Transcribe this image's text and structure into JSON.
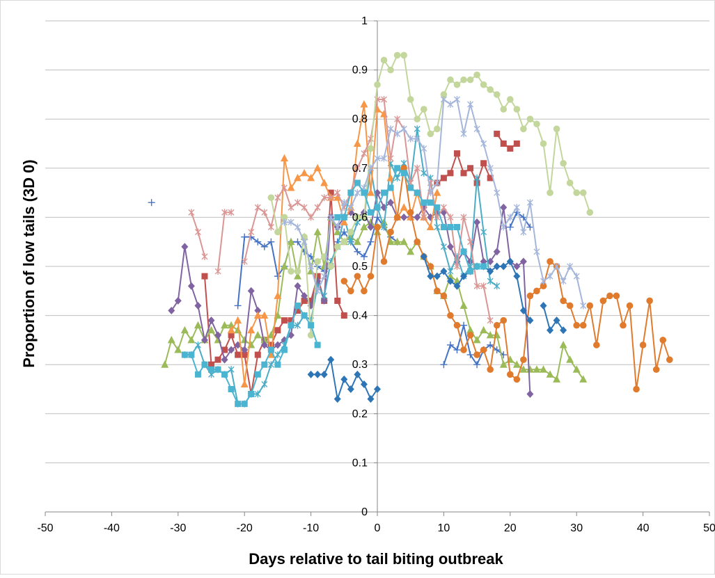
{
  "chart_data": {
    "type": "line",
    "title": "",
    "xlabel": "Days relative to tail biting outbreak",
    "ylabel": "Proportion of low tails (3D 0)",
    "xlim": [
      -50,
      50
    ],
    "ylim": [
      0,
      1
    ],
    "x_ticks": [
      -50,
      -40,
      -30,
      -20,
      -10,
      0,
      10,
      20,
      30,
      40,
      50
    ],
    "y_ticks": [
      0,
      0.1,
      0.2,
      0.3,
      0.4,
      0.5,
      0.6,
      0.7,
      0.8,
      0.9,
      1
    ],
    "x_tick_labels": [
      "-50",
      "-40",
      "-30",
      "-20",
      "-10",
      "0",
      "10",
      "20",
      "30",
      "40",
      "50"
    ],
    "y_tick_labels": [
      "0",
      "0.1",
      "0.2",
      "0.3",
      "0.4",
      "0.5",
      "0.6",
      "0.7",
      "0.8",
      "0.9",
      "1"
    ],
    "grid": "horizontal",
    "legend": "none",
    "series": [
      {
        "color": "#4472c4",
        "marker": "plus",
        "x": [
          -34
        ],
        "y": [
          0.63
        ]
      },
      {
        "color": "#4472c4",
        "marker": "plus",
        "x": [
          -21,
          -20,
          -19,
          -18,
          -17,
          -16,
          -15,
          -14,
          -13,
          -12,
          -11,
          -10,
          -9,
          -8,
          -7,
          -6,
          -5,
          -4,
          -3,
          -2,
          -1,
          0,
          1,
          2,
          3
        ],
        "y": [
          0.42,
          0.56,
          0.56,
          0.55,
          0.54,
          0.55,
          0.48,
          0.5,
          0.55,
          0.55,
          0.53,
          0.52,
          0.5,
          0.49,
          0.5,
          0.55,
          0.57,
          0.55,
          0.53,
          0.52,
          0.55,
          0.6,
          0.58,
          0.56,
          0.55
        ]
      },
      {
        "color": "#4472c4",
        "marker": "plus",
        "x": [
          10,
          11,
          12,
          13,
          14,
          15,
          16,
          17,
          18,
          19
        ],
        "y": [
          0.3,
          0.34,
          0.33,
          0.38,
          0.32,
          0.3,
          0.33,
          0.34,
          0.33,
          0.32
        ]
      },
      {
        "color": "#4472c4",
        "marker": "plus",
        "x": [
          20,
          21,
          22,
          23
        ],
        "y": [
          0.58,
          0.61,
          0.6,
          0.58
        ]
      },
      {
        "color": "#c0504d",
        "marker": "square",
        "x": [
          -26,
          -25,
          -24,
          -23,
          -22,
          -21,
          -20,
          -19,
          -18,
          -17,
          -16,
          -15,
          -14,
          -13,
          -12,
          -11,
          -10,
          -9,
          -8,
          -7,
          -6,
          -5
        ],
        "y": [
          0.48,
          0.3,
          0.31,
          0.33,
          0.36,
          0.32,
          0.32,
          0.24,
          0.32,
          0.35,
          0.34,
          0.37,
          0.39,
          0.39,
          0.41,
          0.43,
          0.43,
          0.48,
          0.43,
          0.65,
          0.43,
          0.4
        ]
      },
      {
        "color": "#c0504d",
        "marker": "square",
        "x": [
          9,
          10,
          11,
          12,
          13,
          14,
          15,
          16,
          17
        ],
        "y": [
          0.67,
          0.68,
          0.69,
          0.73,
          0.69,
          0.7,
          0.67,
          0.71,
          0.68
        ]
      },
      {
        "color": "#c0504d",
        "marker": "square",
        "x": [
          18,
          19,
          20,
          21
        ],
        "y": [
          0.77,
          0.75,
          0.74,
          0.75
        ]
      },
      {
        "color": "#9bbb59",
        "marker": "triangle",
        "x": [
          -32,
          -31,
          -30,
          -29,
          -28,
          -27,
          -26,
          -25,
          -24,
          -23,
          -22,
          -21,
          -20,
          -19,
          -18,
          -17,
          -16,
          -15,
          -14,
          -13,
          -12,
          -11,
          -10,
          -9,
          -8,
          -7,
          -6,
          -5,
          -4,
          -3,
          -2,
          -1,
          0,
          1,
          2,
          3,
          4,
          5,
          6,
          7,
          8,
          9,
          10,
          11,
          12,
          13,
          14,
          15,
          16,
          17,
          18,
          19,
          20,
          21,
          22,
          23,
          24,
          25,
          26,
          27,
          28,
          29,
          30,
          31
        ],
        "y": [
          0.3,
          0.35,
          0.33,
          0.37,
          0.35,
          0.38,
          0.35,
          0.37,
          0.35,
          0.38,
          0.38,
          0.37,
          0.35,
          0.34,
          0.36,
          0.35,
          0.36,
          0.4,
          0.5,
          0.55,
          0.48,
          0.56,
          0.49,
          0.57,
          0.5,
          0.6,
          0.57,
          0.55,
          0.56,
          0.55,
          0.58,
          0.59,
          0.57,
          0.59,
          0.55,
          0.55,
          0.55,
          0.53,
          0.55,
          0.52,
          0.5,
          0.45,
          0.44,
          0.48,
          0.47,
          0.42,
          0.37,
          0.35,
          0.37,
          0.36,
          0.36,
          0.3,
          0.31,
          0.3,
          0.29,
          0.29,
          0.29,
          0.29,
          0.28,
          0.27,
          0.34,
          0.31,
          0.29,
          0.27
        ]
      },
      {
        "color": "#8064a2",
        "marker": "diamond",
        "x": [
          -31,
          -30,
          -29,
          -28,
          -27,
          -26,
          -25,
          -24,
          -23,
          -22,
          -21,
          -20,
          -19,
          -18,
          -17,
          -16,
          -15,
          -14,
          -13,
          -12,
          -11,
          -10,
          -9,
          -8,
          -7,
          -6,
          -5,
          -4,
          -3,
          -2,
          -1,
          0,
          1,
          2,
          3,
          4,
          5,
          6,
          7,
          8,
          9,
          10,
          11,
          12,
          13,
          14,
          15,
          16,
          17,
          18,
          19,
          20,
          21,
          22,
          23
        ],
        "y": [
          0.41,
          0.43,
          0.54,
          0.46,
          0.42,
          0.35,
          0.39,
          0.36,
          0.31,
          0.33,
          0.34,
          0.33,
          0.45,
          0.41,
          0.34,
          0.33,
          0.34,
          0.35,
          0.36,
          0.46,
          0.44,
          0.42,
          0.47,
          0.43,
          0.6,
          0.58,
          0.6,
          0.61,
          0.6,
          0.61,
          0.58,
          0.65,
          0.62,
          0.63,
          0.6,
          0.6,
          0.6,
          0.6,
          0.62,
          0.6,
          0.61,
          0.61,
          0.54,
          0.51,
          0.53,
          0.51,
          0.59,
          0.51,
          0.51,
          0.53,
          0.62,
          0.51,
          0.5,
          0.51,
          0.24
        ]
      },
      {
        "color": "#4bacc6",
        "marker": "star",
        "x": [
          -29,
          -28,
          -27,
          -26,
          -25,
          -24,
          -23,
          -22,
          -21,
          -20,
          -19,
          -18,
          -17,
          -16,
          -15,
          -14,
          -13,
          -12,
          -11,
          -10,
          -9,
          -8,
          -7,
          -6,
          -5,
          -4,
          -3,
          -2,
          -1,
          0,
          1,
          2,
          3,
          4,
          5,
          6,
          7,
          8,
          9,
          10,
          11,
          12,
          13,
          14,
          15,
          16,
          17,
          18
        ],
        "y": [
          0.32,
          0.32,
          0.34,
          0.3,
          0.28,
          0.29,
          0.28,
          0.29,
          0.22,
          0.22,
          0.24,
          0.24,
          0.26,
          0.3,
          0.32,
          0.34,
          0.38,
          0.38,
          0.4,
          0.39,
          0.46,
          0.44,
          0.51,
          0.54,
          0.6,
          0.55,
          0.59,
          0.6,
          0.7,
          0.62,
          0.58,
          0.71,
          0.68,
          0.71,
          0.67,
          0.78,
          0.69,
          0.68,
          0.58,
          0.54,
          0.49,
          0.52,
          0.48,
          0.5,
          0.68,
          0.57,
          0.47,
          0.46
        ]
      },
      {
        "color": "#f79646",
        "marker": "triangle",
        "x": [
          -22,
          -21,
          -20,
          -19,
          -18,
          -17,
          -16,
          -15,
          -14,
          -13,
          -12,
          -11,
          -10,
          -9,
          -8,
          -7,
          -6,
          -5,
          -4,
          -3,
          -2,
          -1,
          0,
          1,
          2,
          3,
          4,
          5,
          6,
          7,
          8,
          9
        ],
        "y": [
          0.37,
          0.39,
          0.26,
          0.37,
          0.4,
          0.4,
          0.32,
          0.44,
          0.72,
          0.66,
          0.68,
          0.69,
          0.68,
          0.7,
          0.67,
          0.64,
          0.64,
          0.59,
          0.62,
          0.75,
          0.83,
          0.65,
          0.82,
          0.81,
          0.68,
          0.6,
          0.62,
          0.6,
          0.65,
          0.6,
          0.58,
          0.65
        ]
      },
      {
        "color": "#e07b2e",
        "marker": "circle",
        "x": [
          -5,
          -4,
          -3,
          -2,
          -1,
          0,
          1,
          2,
          3,
          4,
          5,
          6,
          7,
          8,
          9,
          10,
          11,
          12,
          13,
          14,
          15,
          16,
          17,
          18,
          19,
          20,
          21,
          22,
          23,
          24,
          25,
          26,
          27,
          28,
          29,
          30,
          31,
          32,
          33,
          34,
          35,
          36,
          37,
          38,
          39,
          40,
          41,
          42,
          43,
          44
        ],
        "y": [
          0.47,
          0.45,
          0.48,
          0.45,
          0.48,
          0.58,
          0.51,
          0.57,
          0.6,
          0.7,
          0.61,
          0.55,
          0.52,
          0.5,
          0.45,
          0.44,
          0.4,
          0.38,
          0.33,
          0.36,
          0.32,
          0.33,
          0.29,
          0.38,
          0.39,
          0.28,
          0.27,
          0.31,
          0.44,
          0.45,
          0.46,
          0.51,
          0.5,
          0.43,
          0.42,
          0.38,
          0.38,
          0.42,
          0.34,
          0.43,
          0.44,
          0.44,
          0.38,
          0.42,
          0.25,
          0.34,
          0.43,
          0.29,
          0.35,
          0.31
        ]
      },
      {
        "color": "#2e75b6",
        "marker": "diamond",
        "x": [
          -10,
          -9,
          -8,
          -7,
          -6,
          -5,
          -4,
          -3,
          -2,
          -1,
          0
        ],
        "y": [
          0.28,
          0.28,
          0.28,
          0.31,
          0.23,
          0.27,
          0.25,
          0.28,
          0.26,
          0.23,
          0.25
        ]
      },
      {
        "color": "#2e75b6",
        "marker": "diamond",
        "x": [
          7,
          8,
          9,
          10,
          11,
          12,
          13,
          14,
          15,
          16,
          17,
          18,
          19,
          20,
          21,
          22,
          23
        ],
        "y": [
          0.52,
          0.48,
          0.48,
          0.49,
          0.47,
          0.46,
          0.48,
          0.49,
          0.5,
          0.5,
          0.49,
          0.5,
          0.5,
          0.51,
          0.48,
          0.41,
          0.39
        ]
      },
      {
        "color": "#2e75b6",
        "marker": "diamond",
        "x": [
          25,
          26,
          27,
          28
        ],
        "y": [
          0.42,
          0.37,
          0.39,
          0.37
        ]
      },
      {
        "color": "#d99694",
        "marker": "star",
        "x": [
          -28,
          -27,
          -26
        ],
        "y": [
          0.61,
          0.57,
          0.52
        ]
      },
      {
        "color": "#d99694",
        "marker": "star",
        "x": [
          -24,
          -23,
          -22
        ],
        "y": [
          0.49,
          0.61,
          0.61
        ]
      },
      {
        "color": "#d99694",
        "marker": "star",
        "x": [
          -20,
          -19,
          -18,
          -17,
          -16,
          -15,
          -14,
          -13,
          -12,
          -11,
          -10,
          -9,
          -8,
          -7,
          -6,
          -5,
          -4,
          -3,
          -2,
          -1,
          0,
          1,
          2,
          3,
          4,
          5,
          6,
          7,
          8,
          9,
          10,
          11,
          12,
          13,
          14,
          15,
          16,
          17
        ],
        "y": [
          0.51,
          0.57,
          0.62,
          0.61,
          0.58,
          0.64,
          0.66,
          0.62,
          0.63,
          0.62,
          0.6,
          0.62,
          0.64,
          0.64,
          0.65,
          0.62,
          0.65,
          0.7,
          0.73,
          0.76,
          0.84,
          0.84,
          0.72,
          0.8,
          0.78,
          0.67,
          0.7,
          0.6,
          0.67,
          0.6,
          0.62,
          0.6,
          0.5,
          0.6,
          0.55,
          0.46,
          0.46,
          0.39
        ]
      },
      {
        "color": "#c3d69b",
        "marker": "circle",
        "x": [
          -16,
          -15,
          -14,
          -13,
          -12,
          -11,
          -10,
          -9,
          -8,
          -7,
          -6,
          -5,
          -4,
          -3,
          -2,
          -1,
          0,
          1,
          2,
          3,
          4,
          5,
          6,
          7,
          8,
          9,
          10,
          11,
          12,
          13,
          14,
          15,
          16,
          17,
          18,
          19,
          20,
          21,
          22,
          23,
          24,
          25,
          26,
          27,
          28,
          29,
          30,
          31,
          32
        ],
        "y": [
          0.64,
          0.57,
          0.6,
          0.49,
          0.49,
          0.56,
          0.36,
          0.51,
          0.52,
          0.5,
          0.54,
          0.55,
          0.57,
          0.6,
          0.6,
          0.74,
          0.87,
          0.92,
          0.9,
          0.93,
          0.93,
          0.84,
          0.8,
          0.82,
          0.77,
          0.78,
          0.85,
          0.88,
          0.87,
          0.88,
          0.88,
          0.89,
          0.87,
          0.86,
          0.85,
          0.82,
          0.84,
          0.82,
          0.78,
          0.8,
          0.79,
          0.75,
          0.65,
          0.78,
          0.71,
          0.67,
          0.65,
          0.65,
          0.61
        ]
      },
      {
        "color": "#a5b6da",
        "marker": "star",
        "x": [
          -14,
          -13,
          -12,
          -11,
          -10,
          -9,
          -8,
          -7,
          -6,
          -5,
          -4,
          -3,
          -2,
          -1,
          0,
          1,
          2,
          3,
          4,
          5,
          6,
          7,
          8,
          9,
          10,
          11,
          12,
          13,
          14,
          15,
          16,
          17,
          18,
          19,
          20,
          21,
          22,
          23,
          24,
          25,
          26,
          27,
          28,
          29,
          30,
          31
        ],
        "y": [
          0.59,
          0.59,
          0.58,
          0.55,
          0.5,
          0.45,
          0.48,
          0.6,
          0.58,
          0.63,
          0.62,
          0.65,
          0.66,
          0.7,
          0.72,
          0.72,
          0.78,
          0.77,
          0.78,
          0.76,
          0.76,
          0.74,
          0.65,
          0.67,
          0.84,
          0.83,
          0.84,
          0.77,
          0.83,
          0.78,
          0.75,
          0.7,
          0.65,
          0.58,
          0.6,
          0.62,
          0.57,
          0.63,
          0.53,
          0.47,
          0.48,
          0.5,
          0.47,
          0.5,
          0.48,
          0.42
        ]
      },
      {
        "color": "#4bb4d0",
        "marker": "square",
        "x": [
          -29,
          -28,
          -27,
          -26,
          -25,
          -24,
          -23,
          -22,
          -21,
          -20,
          -19,
          -18,
          -17,
          -16,
          -15,
          -14,
          -13,
          -12,
          -11,
          -10,
          -9
        ],
        "y": [
          0.32,
          0.32,
          0.28,
          0.3,
          0.29,
          0.29,
          0.28,
          0.25,
          0.22,
          0.22,
          0.24,
          0.28,
          0.3,
          0.33,
          0.3,
          0.33,
          0.38,
          0.42,
          0.4,
          0.38,
          0.34
        ]
      },
      {
        "color": "#4bb4d0",
        "marker": "square",
        "x": [
          -6,
          -5,
          -4,
          -3,
          -2,
          -1,
          0,
          1,
          2,
          3,
          4,
          5,
          6,
          7,
          8,
          9,
          10,
          11,
          12,
          13,
          14,
          15,
          16
        ],
        "y": [
          0.6,
          0.6,
          0.65,
          0.67,
          0.65,
          0.61,
          0.62,
          0.65,
          0.66,
          0.7,
          0.69,
          0.66,
          0.65,
          0.63,
          0.63,
          0.62,
          0.58,
          0.58,
          0.58,
          0.53,
          0.49,
          0.5,
          0.5
        ]
      }
    ]
  }
}
